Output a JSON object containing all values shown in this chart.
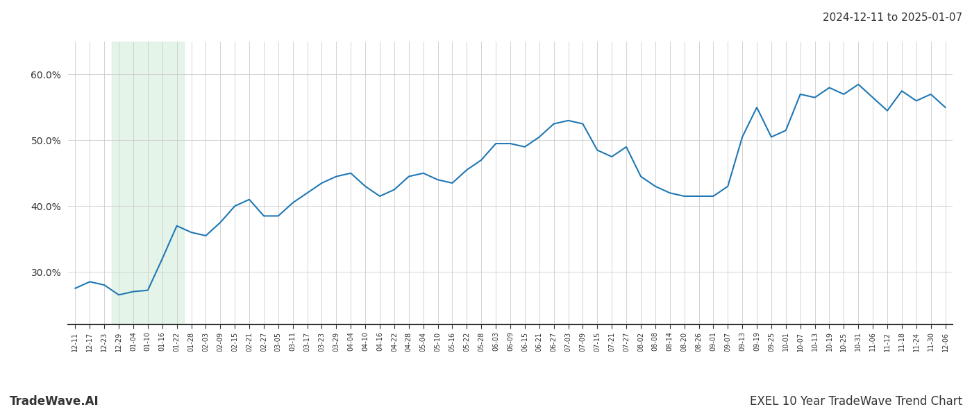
{
  "title_top_right": "2024-12-11 to 2025-01-07",
  "title_bottom_right": "EXEL 10 Year TradeWave Trend Chart",
  "title_bottom_left": "TradeWave.AI",
  "line_color": "#1f77b4",
  "line_width": 1.5,
  "shade_color": "#d4edda",
  "shade_alpha": 0.6,
  "shade_xstart_label": 3,
  "shade_xend_label": 7,
  "background_color": "#ffffff",
  "grid_color": "#cccccc",
  "ylim": [
    22,
    65
  ],
  "yticks": [
    30,
    40,
    50,
    60
  ],
  "ytick_labels": [
    "30.0%",
    "40.0%",
    "50.0%",
    "60.0%"
  ],
  "x_labels": [
    "12-11",
    "12-17",
    "12-23",
    "12-29",
    "01-04",
    "01-10",
    "01-16",
    "01-22",
    "01-28",
    "02-03",
    "02-09",
    "02-15",
    "02-21",
    "02-27",
    "03-05",
    "03-11",
    "03-17",
    "03-23",
    "03-29",
    "04-04",
    "04-10",
    "04-16",
    "04-22",
    "04-28",
    "05-04",
    "05-10",
    "05-16",
    "05-22",
    "05-28",
    "06-03",
    "06-09",
    "06-15",
    "06-21",
    "06-27",
    "07-03",
    "07-09",
    "07-15",
    "07-21",
    "07-27",
    "08-02",
    "08-08",
    "08-14",
    "08-20",
    "08-26",
    "09-01",
    "09-07",
    "09-13",
    "09-19",
    "09-25",
    "10-01",
    "10-07",
    "10-13",
    "10-19",
    "10-25",
    "10-31",
    "11-06",
    "11-12",
    "11-18",
    "11-24",
    "11-30",
    "12-06"
  ],
  "y_values": [
    27.5,
    28.5,
    28.0,
    26.5,
    27.0,
    27.2,
    32.0,
    37.0,
    36.0,
    35.5,
    37.5,
    40.0,
    41.0,
    38.5,
    38.5,
    40.5,
    42.0,
    43.5,
    44.5,
    45.0,
    43.0,
    41.5,
    42.5,
    44.5,
    45.0,
    44.0,
    43.5,
    45.5,
    47.0,
    49.5,
    49.5,
    49.0,
    50.5,
    52.5,
    53.0,
    52.5,
    48.5,
    47.5,
    49.0,
    44.5,
    43.0,
    42.0,
    41.5,
    41.5,
    41.5,
    43.0,
    50.5,
    55.0,
    50.5,
    51.5,
    57.0,
    56.5,
    58.0,
    57.0,
    58.5,
    56.5,
    54.5,
    57.5,
    56.0,
    57.0,
    55.0
  ]
}
